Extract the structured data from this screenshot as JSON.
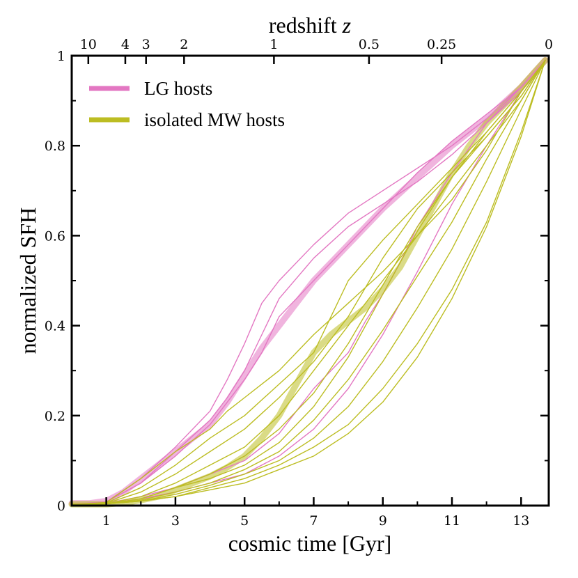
{
  "chart_data": {
    "type": "line",
    "title": "",
    "xlabel": "cosmic time [Gyr]",
    "ylabel": "normalized SFH",
    "top_label": "redshift",
    "top_label_var": "z",
    "xlim": [
      0,
      13.8
    ],
    "ylim": [
      0,
      1
    ],
    "x_ticks": [
      1,
      3,
      5,
      7,
      9,
      11,
      13
    ],
    "x_tick_labels": [
      "1",
      "3",
      "5",
      "7",
      "9",
      "11",
      "13"
    ],
    "y_ticks": [
      0,
      0.2,
      0.4,
      0.6,
      0.8,
      1
    ],
    "y_tick_labels": [
      "0",
      "0.2",
      "0.4",
      "0.6",
      "0.8",
      "1"
    ],
    "top_ticks": [
      {
        "label": "10",
        "t": 0.48
      },
      {
        "label": "4",
        "t": 1.55
      },
      {
        "label": "3",
        "t": 2.15
      },
      {
        "label": "2",
        "t": 3.25
      },
      {
        "label": "1",
        "t": 5.85
      },
      {
        "label": "0.5",
        "t": 8.6
      },
      {
        "label": "0.25",
        "t": 10.7
      },
      {
        "label": "0",
        "t": 13.8
      }
    ],
    "legend": [
      {
        "label": "LG hosts",
        "color": "#e377c2"
      },
      {
        "label": "isolated MW hosts",
        "color": "#bcbd22"
      }
    ],
    "legend_position": "top-left",
    "grid": false,
    "series": [
      {
        "name": "LG hosts",
        "kind": "median",
        "color": "#e377c2",
        "x": [
          0,
          0.5,
          1.0,
          1.5,
          2.0,
          2.5,
          3.0,
          3.5,
          4.0,
          4.5,
          5.0,
          5.5,
          6.0,
          6.5,
          7.0,
          7.5,
          8.0,
          8.5,
          9.0,
          10.0,
          11.0,
          12.0,
          13.0,
          13.7
        ],
        "y": [
          0.005,
          0.005,
          0.01,
          0.03,
          0.06,
          0.09,
          0.12,
          0.15,
          0.18,
          0.23,
          0.29,
          0.35,
          0.4,
          0.45,
          0.5,
          0.54,
          0.58,
          0.62,
          0.66,
          0.73,
          0.8,
          0.86,
          0.93,
          0.99
        ]
      },
      {
        "name": "isolated MW hosts",
        "kind": "median",
        "color": "#bcbd22",
        "x": [
          0,
          1.0,
          1.5,
          2.0,
          2.5,
          3.0,
          3.5,
          4.0,
          4.5,
          5.0,
          5.5,
          6.0,
          6.5,
          7.0,
          7.5,
          8.0,
          8.5,
          9.0,
          9.5,
          10.0,
          10.5,
          11.0,
          11.5,
          12.0,
          13.0,
          13.7
        ],
        "y": [
          0.003,
          0.003,
          0.006,
          0.012,
          0.02,
          0.035,
          0.05,
          0.065,
          0.085,
          0.11,
          0.15,
          0.2,
          0.27,
          0.34,
          0.38,
          0.41,
          0.44,
          0.48,
          0.53,
          0.6,
          0.67,
          0.74,
          0.8,
          0.85,
          0.93,
          0.99
        ]
      },
      {
        "name": "LG host 1",
        "kind": "individual",
        "color": "#e377c2",
        "x": [
          0,
          1.0,
          2.0,
          3.0,
          4.0,
          4.5,
          5.0,
          5.5,
          6.0,
          7.0,
          8.0,
          9.0,
          10.0,
          11.0,
          12.0,
          13.0,
          13.7
        ],
        "y": [
          0.003,
          0.008,
          0.06,
          0.13,
          0.21,
          0.28,
          0.36,
          0.45,
          0.5,
          0.58,
          0.65,
          0.7,
          0.75,
          0.8,
          0.86,
          0.93,
          0.99
        ]
      },
      {
        "name": "LG host 2",
        "kind": "individual",
        "color": "#e377c2",
        "x": [
          0,
          1.0,
          2.0,
          3.0,
          4.0,
          4.5,
          5.0,
          5.5,
          6.0,
          7.0,
          8.0,
          9.0,
          10.0,
          11.0,
          12.0,
          13.0,
          13.7
        ],
        "y": [
          0.003,
          0.008,
          0.05,
          0.12,
          0.19,
          0.24,
          0.3,
          0.38,
          0.46,
          0.55,
          0.62,
          0.67,
          0.72,
          0.78,
          0.85,
          0.92,
          0.99
        ]
      },
      {
        "name": "LG host 3",
        "kind": "individual",
        "color": "#e377c2",
        "x": [
          0,
          1.0,
          2.0,
          3.0,
          4.0,
          4.5,
          5.0,
          5.5,
          6.0,
          7.0,
          8.0,
          9.0,
          10.0,
          11.0,
          12.0,
          13.0,
          13.7
        ],
        "y": [
          0.003,
          0.008,
          0.05,
          0.11,
          0.18,
          0.23,
          0.28,
          0.34,
          0.42,
          0.5,
          0.58,
          0.66,
          0.74,
          0.81,
          0.87,
          0.93,
          0.99
        ]
      },
      {
        "name": "LG host 4",
        "kind": "individual",
        "color": "#e377c2",
        "x": [
          0,
          1.0,
          2.0,
          3.0,
          4.0,
          5.0,
          6.0,
          7.0,
          8.0,
          8.5,
          9.0,
          9.5,
          10.0,
          11.0,
          12.0,
          13.0,
          13.7
        ],
        "y": [
          0.003,
          0.005,
          0.02,
          0.04,
          0.07,
          0.1,
          0.16,
          0.26,
          0.34,
          0.41,
          0.47,
          0.54,
          0.62,
          0.74,
          0.85,
          0.93,
          0.99
        ]
      },
      {
        "name": "LG host 5",
        "kind": "individual",
        "color": "#e377c2",
        "x": [
          0,
          1.0,
          2.0,
          3.0,
          4.0,
          5.0,
          6.0,
          7.0,
          8.0,
          9.0,
          10.0,
          11.0,
          12.0,
          13.0,
          13.7
        ],
        "y": [
          0.003,
          0.005,
          0.015,
          0.03,
          0.05,
          0.07,
          0.11,
          0.17,
          0.26,
          0.38,
          0.52,
          0.67,
          0.8,
          0.92,
          0.99
        ]
      },
      {
        "name": "isolated MW host 1",
        "kind": "individual",
        "color": "#bcbd22",
        "x": [
          0,
          1.0,
          2.0,
          3.0,
          4.0,
          4.5,
          5.0,
          5.5,
          6.0,
          6.5,
          7.0,
          8.0,
          9.0,
          10.0,
          11.0,
          12.0,
          13.0,
          13.7
        ],
        "y": [
          0.003,
          0.007,
          0.06,
          0.12,
          0.17,
          0.21,
          0.24,
          0.27,
          0.3,
          0.34,
          0.38,
          0.45,
          0.52,
          0.6,
          0.68,
          0.79,
          0.92,
          0.99
        ]
      },
      {
        "name": "isolated MW host 2",
        "kind": "individual",
        "color": "#bcbd22",
        "x": [
          0,
          1.0,
          2.0,
          3.0,
          4.0,
          5.0,
          6.0,
          7.0,
          7.5,
          8.0,
          9.0,
          10.0,
          11.0,
          12.0,
          13.0,
          13.7
        ],
        "y": [
          0.003,
          0.006,
          0.04,
          0.09,
          0.15,
          0.2,
          0.27,
          0.34,
          0.42,
          0.5,
          0.59,
          0.67,
          0.75,
          0.83,
          0.92,
          0.99
        ]
      },
      {
        "name": "isolated MW host 3",
        "kind": "individual",
        "color": "#bcbd22",
        "x": [
          0,
          1.0,
          2.0,
          3.0,
          4.0,
          5.0,
          6.0,
          7.0,
          8.0,
          9.0,
          10.0,
          11.0,
          12.0,
          13.0,
          13.7
        ],
        "y": [
          0.003,
          0.005,
          0.03,
          0.07,
          0.12,
          0.17,
          0.24,
          0.32,
          0.42,
          0.55,
          0.66,
          0.74,
          0.82,
          0.91,
          0.99
        ]
      },
      {
        "name": "isolated MW host 4",
        "kind": "individual",
        "color": "#bcbd22",
        "x": [
          0,
          1.0,
          2.0,
          3.0,
          4.0,
          5.0,
          6.0,
          7.0,
          8.0,
          9.0,
          10.0,
          11.0,
          12.0,
          13.0,
          13.7
        ],
        "y": [
          0.003,
          0.004,
          0.02,
          0.05,
          0.09,
          0.13,
          0.2,
          0.3,
          0.4,
          0.5,
          0.6,
          0.7,
          0.8,
          0.9,
          0.99
        ]
      },
      {
        "name": "isolated MW host 5",
        "kind": "individual",
        "color": "#bcbd22",
        "x": [
          0,
          1.0,
          2.0,
          3.0,
          4.0,
          5.0,
          6.0,
          7.0,
          8.0,
          9.0,
          10.0,
          11.0,
          12.0,
          13.0,
          13.7
        ],
        "y": [
          0.003,
          0.004,
          0.015,
          0.04,
          0.07,
          0.11,
          0.17,
          0.25,
          0.36,
          0.49,
          0.62,
          0.73,
          0.82,
          0.91,
          0.99
        ]
      },
      {
        "name": "isolated MW host 6",
        "kind": "individual",
        "color": "#bcbd22",
        "x": [
          0,
          1.0,
          2.0,
          3.0,
          4.0,
          5.0,
          6.0,
          7.0,
          8.0,
          9.0,
          10.0,
          11.0,
          12.0,
          13.0,
          13.7
        ],
        "y": [
          0.003,
          0.004,
          0.015,
          0.04,
          0.06,
          0.09,
          0.14,
          0.22,
          0.33,
          0.47,
          0.61,
          0.73,
          0.83,
          0.92,
          0.99
        ]
      },
      {
        "name": "isolated MW host 7",
        "kind": "individual",
        "color": "#bcbd22",
        "x": [
          0,
          1.0,
          2.0,
          3.0,
          4.0,
          5.0,
          6.0,
          7.0,
          8.0,
          9.0,
          10.0,
          11.0,
          12.0,
          13.0,
          13.7
        ],
        "y": [
          0.003,
          0.004,
          0.012,
          0.03,
          0.05,
          0.08,
          0.12,
          0.19,
          0.28,
          0.39,
          0.51,
          0.63,
          0.77,
          0.9,
          0.99
        ]
      },
      {
        "name": "isolated MW host 8",
        "kind": "individual",
        "color": "#bcbd22",
        "x": [
          0,
          1.0,
          2.0,
          3.0,
          4.0,
          5.0,
          6.0,
          7.0,
          8.0,
          9.0,
          10.0,
          11.0,
          12.0,
          13.0,
          13.7
        ],
        "y": [
          0.003,
          0.004,
          0.01,
          0.025,
          0.045,
          0.07,
          0.1,
          0.15,
          0.22,
          0.32,
          0.44,
          0.57,
          0.72,
          0.88,
          0.99
        ]
      },
      {
        "name": "isolated MW host 9",
        "kind": "individual",
        "color": "#bcbd22",
        "x": [
          0,
          1.0,
          2.0,
          3.0,
          4.0,
          5.0,
          6.0,
          7.0,
          8.0,
          9.0,
          10.0,
          11.0,
          12.0,
          13.0,
          13.7
        ],
        "y": [
          0.003,
          0.004,
          0.01,
          0.02,
          0.04,
          0.06,
          0.09,
          0.13,
          0.18,
          0.26,
          0.36,
          0.48,
          0.63,
          0.83,
          0.99
        ]
      },
      {
        "name": "isolated MW host 10",
        "kind": "individual",
        "color": "#bcbd22",
        "x": [
          0,
          1.0,
          2.0,
          3.0,
          4.0,
          5.0,
          6.0,
          7.0,
          8.0,
          9.0,
          10.0,
          11.0,
          12.0,
          13.0,
          13.7
        ],
        "y": [
          0.003,
          0.004,
          0.01,
          0.02,
          0.035,
          0.05,
          0.08,
          0.11,
          0.16,
          0.23,
          0.33,
          0.46,
          0.62,
          0.82,
          0.99
        ]
      }
    ]
  }
}
